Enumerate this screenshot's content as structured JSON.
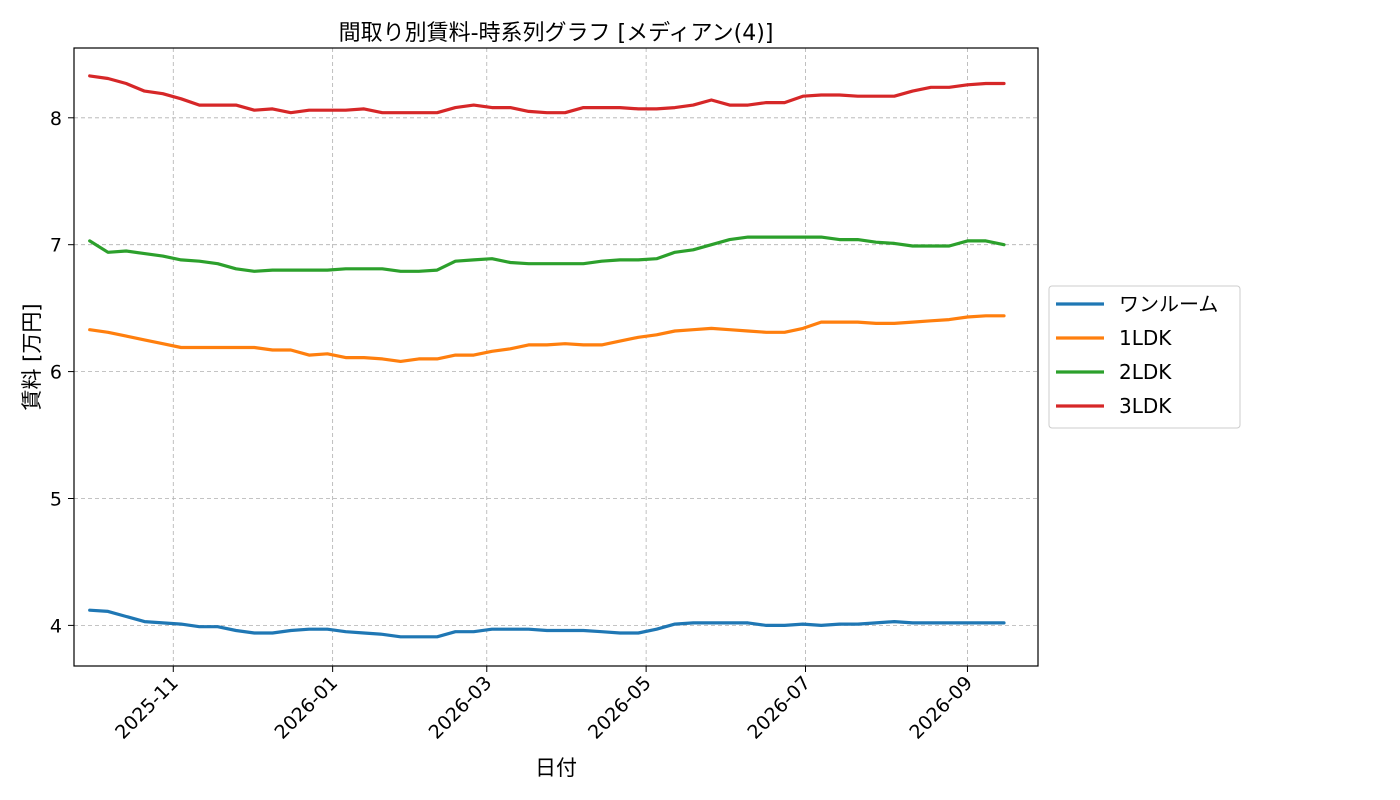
{
  "chart_data": {
    "type": "line",
    "title": "間取り別賃料-時系列グラフ [メディアン(4)]",
    "xlabel": "日付",
    "ylabel": "賃料 [万円]",
    "x_start": "2025-09-30",
    "x_step_days": 7,
    "xlim": [
      "2025-09-24",
      "2026-09-28"
    ],
    "ylim": [
      3.68,
      8.55
    ],
    "x_ticks": [
      "2025-11-01",
      "2026-01-01",
      "2026-03-01",
      "2026-05-01",
      "2026-07-01",
      "2026-09-01"
    ],
    "x_tick_labels": [
      "2025-11",
      "2026-01",
      "2026-03",
      "2026-05",
      "2026-07",
      "2026-09"
    ],
    "y_ticks": [
      4,
      5,
      6,
      7,
      8
    ],
    "y_tick_labels": [
      "4",
      "5",
      "6",
      "7",
      "8"
    ],
    "grid": true,
    "legend_position": "right-outside",
    "series": [
      {
        "name": "ワンルーム",
        "color": "#1f77b4",
        "values": [
          4.12,
          4.11,
          4.07,
          4.03,
          4.02,
          4.01,
          3.99,
          3.99,
          3.96,
          3.94,
          3.94,
          3.96,
          3.97,
          3.97,
          3.95,
          3.94,
          3.93,
          3.91,
          3.91,
          3.91,
          3.95,
          3.95,
          3.97,
          3.97,
          3.97,
          3.96,
          3.96,
          3.96,
          3.95,
          3.94,
          3.94,
          3.97,
          4.01,
          4.02,
          4.02,
          4.02,
          4.02,
          4.0,
          4.0,
          4.01,
          4.0,
          4.01,
          4.01,
          4.02,
          4.03,
          4.02,
          4.02,
          4.02,
          4.02,
          4.02,
          4.02
        ]
      },
      {
        "name": "1LDK",
        "color": "#ff7f0e",
        "values": [
          6.33,
          6.31,
          6.28,
          6.25,
          6.22,
          6.19,
          6.19,
          6.19,
          6.19,
          6.19,
          6.17,
          6.17,
          6.13,
          6.14,
          6.11,
          6.11,
          6.1,
          6.08,
          6.1,
          6.1,
          6.13,
          6.13,
          6.16,
          6.18,
          6.21,
          6.21,
          6.22,
          6.21,
          6.21,
          6.24,
          6.27,
          6.29,
          6.32,
          6.33,
          6.34,
          6.33,
          6.32,
          6.31,
          6.31,
          6.34,
          6.39,
          6.39,
          6.39,
          6.38,
          6.38,
          6.39,
          6.4,
          6.41,
          6.43,
          6.44,
          6.44
        ]
      },
      {
        "name": "2LDK",
        "color": "#2ca02c",
        "values": [
          7.03,
          6.94,
          6.95,
          6.93,
          6.91,
          6.88,
          6.87,
          6.85,
          6.81,
          6.79,
          6.8,
          6.8,
          6.8,
          6.8,
          6.81,
          6.81,
          6.81,
          6.79,
          6.79,
          6.8,
          6.87,
          6.88,
          6.89,
          6.86,
          6.85,
          6.85,
          6.85,
          6.85,
          6.87,
          6.88,
          6.88,
          6.89,
          6.94,
          6.96,
          7.0,
          7.04,
          7.06,
          7.06,
          7.06,
          7.06,
          7.06,
          7.04,
          7.04,
          7.02,
          7.01,
          6.99,
          6.99,
          6.99,
          7.03,
          7.03,
          7.0
        ]
      },
      {
        "name": "3LDK",
        "color": "#d62728",
        "values": [
          8.33,
          8.31,
          8.27,
          8.21,
          8.19,
          8.15,
          8.1,
          8.1,
          8.1,
          8.06,
          8.07,
          8.04,
          8.06,
          8.06,
          8.06,
          8.07,
          8.04,
          8.04,
          8.04,
          8.04,
          8.08,
          8.1,
          8.08,
          8.08,
          8.05,
          8.04,
          8.04,
          8.08,
          8.08,
          8.08,
          8.07,
          8.07,
          8.08,
          8.1,
          8.14,
          8.1,
          8.1,
          8.12,
          8.12,
          8.17,
          8.18,
          8.18,
          8.17,
          8.17,
          8.17,
          8.21,
          8.24,
          8.24,
          8.26,
          8.27,
          8.27
        ]
      }
    ]
  }
}
